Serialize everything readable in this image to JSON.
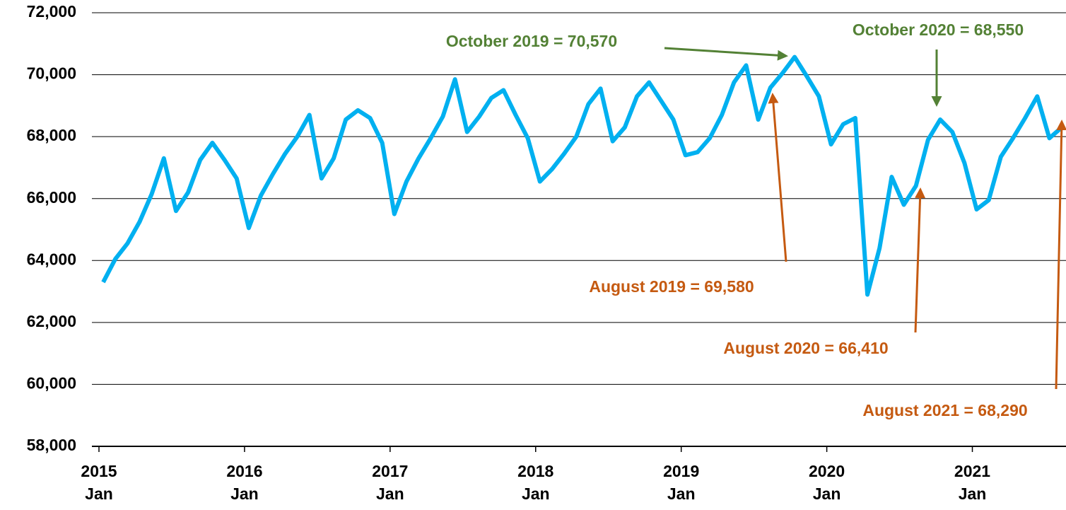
{
  "chart_data": {
    "type": "line",
    "categories": [
      [
        "2015",
        "Jan"
      ],
      null,
      null,
      null,
      null,
      null,
      null,
      null,
      null,
      null,
      null,
      null,
      [
        "2016",
        "Jan"
      ],
      null,
      null,
      null,
      null,
      null,
      null,
      null,
      null,
      null,
      null,
      null,
      [
        "2017",
        "Jan"
      ],
      null,
      null,
      null,
      null,
      null,
      null,
      null,
      null,
      null,
      null,
      null,
      [
        "2018",
        "Jan"
      ],
      null,
      null,
      null,
      null,
      null,
      null,
      null,
      null,
      null,
      null,
      null,
      [
        "2019",
        "Jan"
      ],
      null,
      null,
      null,
      null,
      null,
      null,
      null,
      null,
      null,
      null,
      null,
      [
        "2020",
        "Jan"
      ],
      null,
      null,
      null,
      null,
      null,
      null,
      null,
      null,
      null,
      null,
      null,
      [
        "2021",
        "Jan"
      ],
      null,
      null,
      null,
      null,
      null,
      null,
      null
    ],
    "series": [
      {
        "color": "#00b0f0",
        "values": [
          63300,
          64050,
          64550,
          65250,
          66150,
          67300,
          65600,
          66200,
          67250,
          67800,
          67250,
          66650,
          65050,
          66100,
          66800,
          67450,
          68000,
          68700,
          66650,
          67300,
          68550,
          68850,
          68600,
          67800,
          65500,
          66550,
          67300,
          67950,
          68650,
          69850,
          68150,
          68650,
          69250,
          69500,
          68700,
          67950,
          66550,
          66950,
          67450,
          68000,
          69050,
          69550,
          67850,
          68300,
          69300,
          69750,
          69150,
          68550,
          67400,
          67500,
          67950,
          68700,
          69750,
          70300,
          68550,
          69580,
          70050,
          70570,
          69950,
          69300,
          67750,
          68400,
          68600,
          62900,
          64400,
          66700,
          65800,
          66410,
          67900,
          68550,
          68150,
          67150,
          65650,
          65950,
          67350,
          67950,
          68600,
          69300,
          67950,
          68290
        ]
      }
    ],
    "ylim": [
      58000,
      72000
    ],
    "yticks": [
      {
        "value": 58000,
        "label": "58,000"
      },
      {
        "value": 60000,
        "label": "60,000"
      },
      {
        "value": 62000,
        "label": "62,000"
      },
      {
        "value": 64000,
        "label": "64,000"
      },
      {
        "value": 66000,
        "label": "66,000"
      },
      {
        "value": 68000,
        "label": "68,000"
      },
      {
        "value": 70000,
        "label": "70,000"
      },
      {
        "value": 72000,
        "label": "72,000"
      }
    ],
    "grid": true,
    "annotations": [
      {
        "text": "October 2019 = 70,570",
        "color": "#538135"
      },
      {
        "text": "October 2020 = 68,550",
        "color": "#538135"
      },
      {
        "text": "August 2019 = 69,580",
        "color": "#c55a11"
      },
      {
        "text": "August 2020 = 66,410",
        "color": "#c55a11"
      },
      {
        "text": "August 2021 = 68,290",
        "color": "#c55a11"
      }
    ]
  }
}
